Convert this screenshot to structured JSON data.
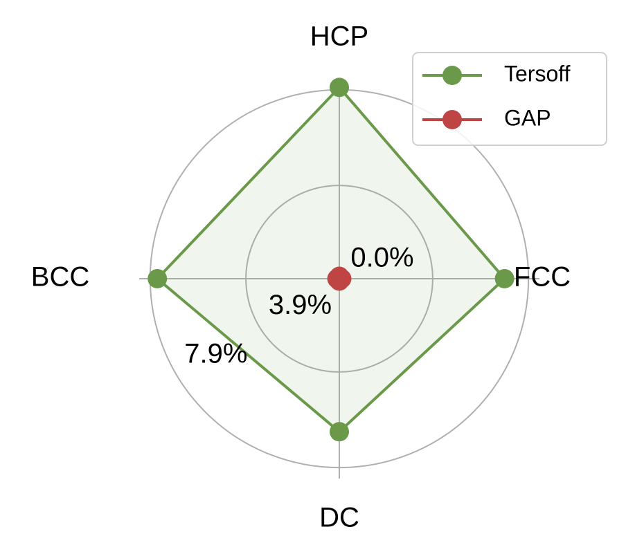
{
  "chart_data": {
    "type": "radar",
    "categories": [
      "FCC",
      "HCP",
      "BCC",
      "DC"
    ],
    "series": [
      {
        "name": "Tersoff",
        "color": "#6a994a",
        "values": [
          6.9,
          8.0,
          7.6,
          6.4
        ]
      },
      {
        "name": "GAP",
        "color": "#bf4545",
        "values": [
          0.1,
          0.1,
          0.1,
          0.1
        ]
      }
    ],
    "rlim": [
      0,
      8.3
    ],
    "rticks": [
      {
        "value": 0.0,
        "label": "0.0%"
      },
      {
        "value": 3.9,
        "label": "3.9%"
      },
      {
        "value": 7.9,
        "label": "7.9%"
      }
    ],
    "grid": true,
    "legend": "upper right"
  }
}
